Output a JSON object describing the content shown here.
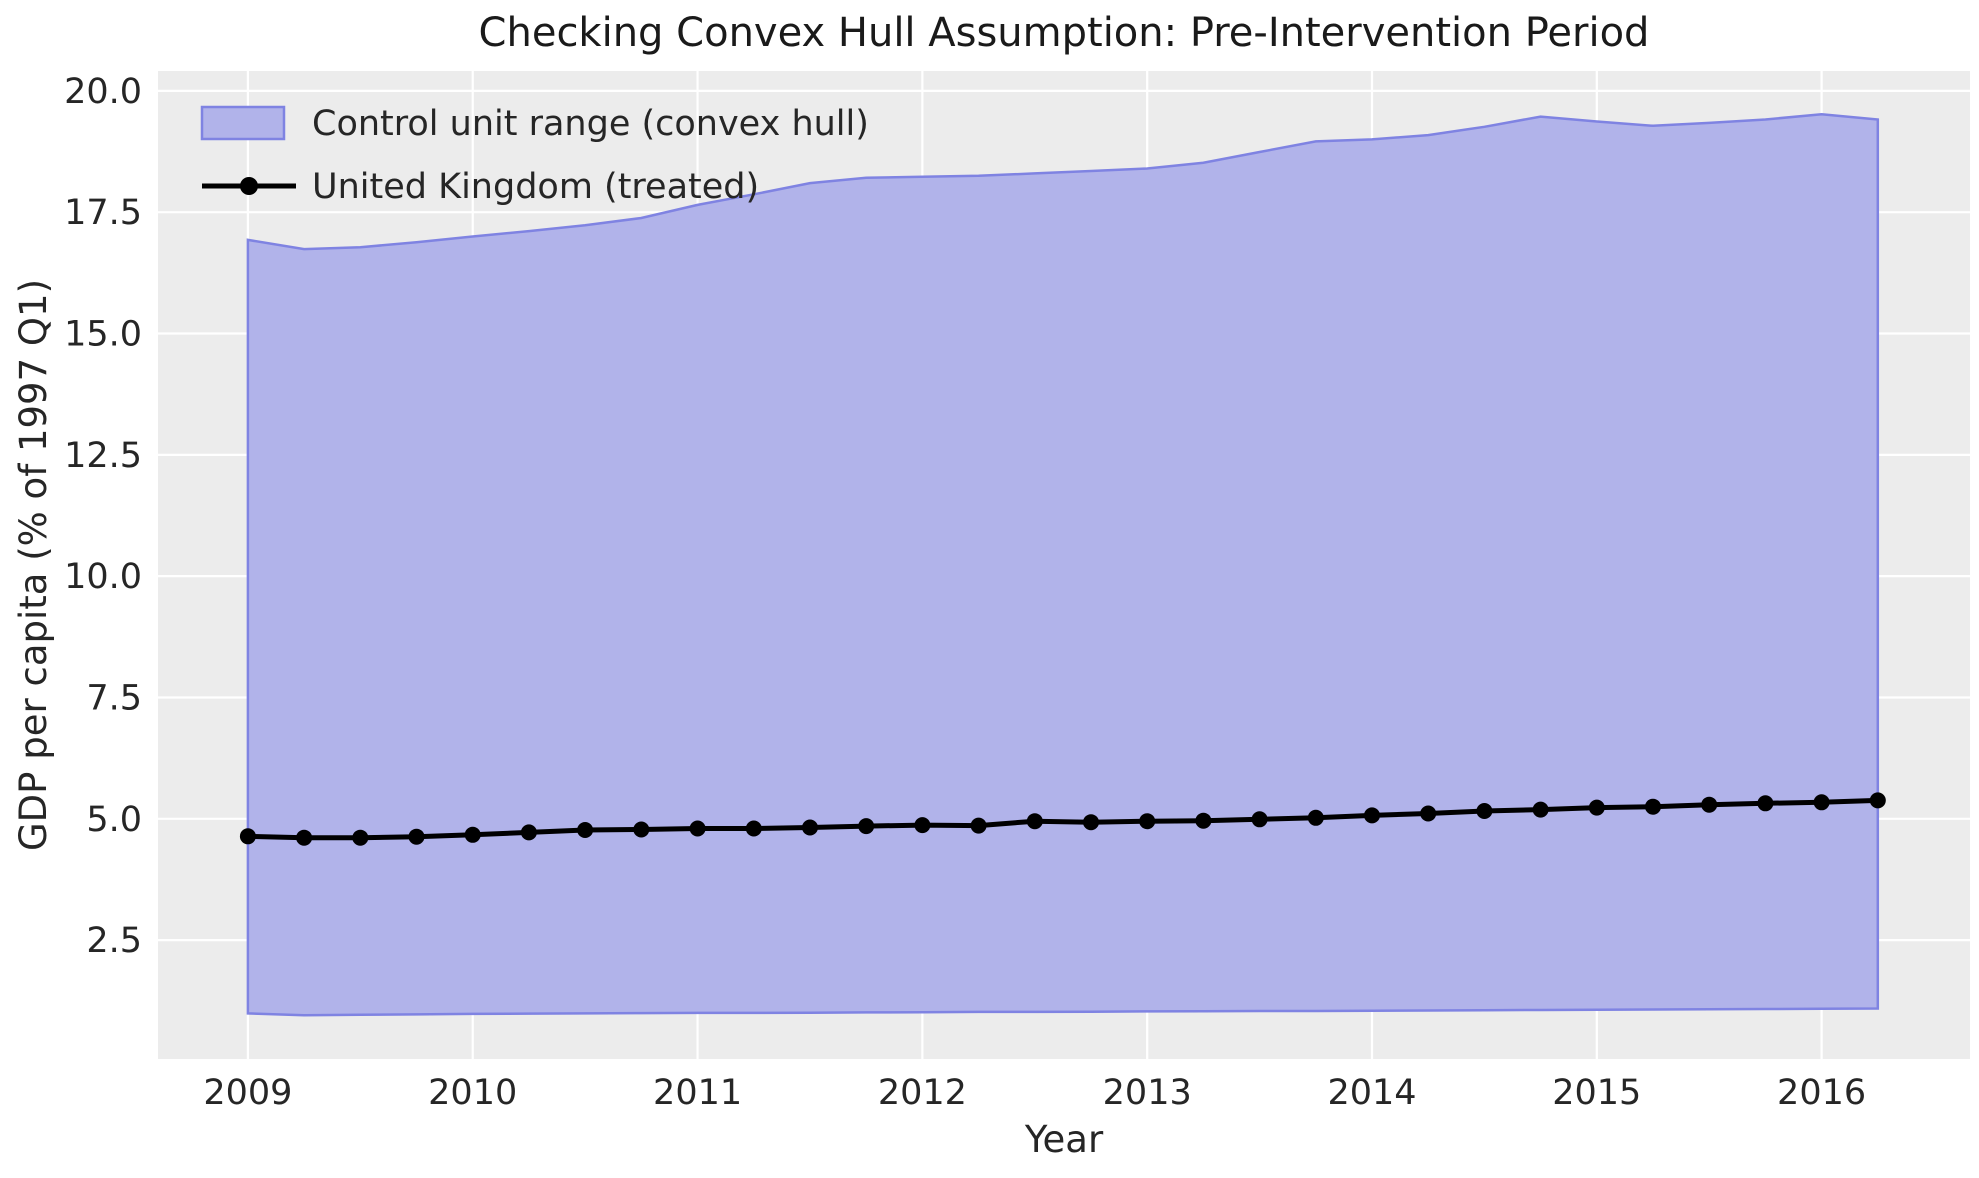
{
  "title": "Checking Convex Hull Assumption: Pre-Intervention Period",
  "colors": {
    "figure_background": "#ffffff",
    "plot_background": "#ececec",
    "grid": "#ffffff",
    "band_fill": "#b1b3ea",
    "band_edge": "#7f83e2",
    "treated_line": "#000000",
    "text": "#262626",
    "title_text": "#1a1a1a"
  },
  "legend": {
    "position": "upper left",
    "items": [
      {
        "label": "Control unit range (convex hull)",
        "glyph": "patch"
      },
      {
        "label": "United Kingdom (treated)",
        "glyph": "line-with-dot"
      }
    ]
  },
  "chart_data": {
    "type": "area",
    "title": "Checking Convex Hull Assumption: Pre-Intervention Period",
    "xlabel": "Year",
    "ylabel": "GDP per capita (% of 1997 Q1)",
    "xlim": [
      2008.6,
      2016.66
    ],
    "ylim": [
      0.05,
      20.41
    ],
    "grid": true,
    "legend_position": "upper left",
    "x_ticks": [
      2009,
      2010,
      2011,
      2012,
      2013,
      2014,
      2015,
      2016
    ],
    "x_tick_labels": [
      "2009",
      "2010",
      "2011",
      "2012",
      "2013",
      "2014",
      "2015",
      "2016"
    ],
    "y_ticks": [
      2.5,
      5.0,
      7.5,
      10.0,
      12.5,
      15.0,
      17.5,
      20.0
    ],
    "y_tick_labels": [
      "2.5",
      "5.0",
      "7.5",
      "10.0",
      "12.5",
      "15.0",
      "17.5",
      "20.0"
    ],
    "x": [
      2009.0,
      2009.25,
      2009.5,
      2009.75,
      2010.0,
      2010.25,
      2010.5,
      2010.75,
      2011.0,
      2011.25,
      2011.5,
      2011.75,
      2012.0,
      2012.25,
      2012.5,
      2012.75,
      2013.0,
      2013.25,
      2013.5,
      2013.75,
      2014.0,
      2014.25,
      2014.5,
      2014.75,
      2015.0,
      2015.25,
      2015.5,
      2015.75,
      2016.0,
      2016.25
    ],
    "series": [
      {
        "name": "Control unit range (convex hull)",
        "type": "band",
        "upper": [
          16.93,
          16.74,
          16.78,
          16.88,
          17.0,
          17.11,
          17.23,
          17.38,
          17.65,
          17.87,
          18.1,
          18.21,
          18.23,
          18.25,
          18.3,
          18.35,
          18.4,
          18.52,
          18.74,
          18.96,
          19.0,
          19.09,
          19.26,
          19.47,
          19.37,
          19.28,
          19.34,
          19.41,
          19.52,
          19.41
        ],
        "lower": [
          0.99,
          0.95,
          0.96,
          0.97,
          0.98,
          0.985,
          0.99,
          0.995,
          1.0,
          1.0,
          1.005,
          1.01,
          1.015,
          1.02,
          1.02,
          1.025,
          1.03,
          1.035,
          1.04,
          1.04,
          1.045,
          1.05,
          1.055,
          1.06,
          1.065,
          1.07,
          1.075,
          1.08,
          1.085,
          1.09
        ],
        "fill_color": "#b1b3ea",
        "edge_color": "#7f83e2"
      },
      {
        "name": "United Kingdom (treated)",
        "type": "line",
        "marker": "circle",
        "color": "#000000",
        "values": [
          4.64,
          4.61,
          4.61,
          4.63,
          4.67,
          4.72,
          4.77,
          4.78,
          4.8,
          4.8,
          4.82,
          4.85,
          4.87,
          4.86,
          4.95,
          4.93,
          4.95,
          4.96,
          4.99,
          5.02,
          5.07,
          5.11,
          5.16,
          5.19,
          5.23,
          5.25,
          5.29,
          5.32,
          5.34,
          5.38
        ]
      }
    ]
  }
}
